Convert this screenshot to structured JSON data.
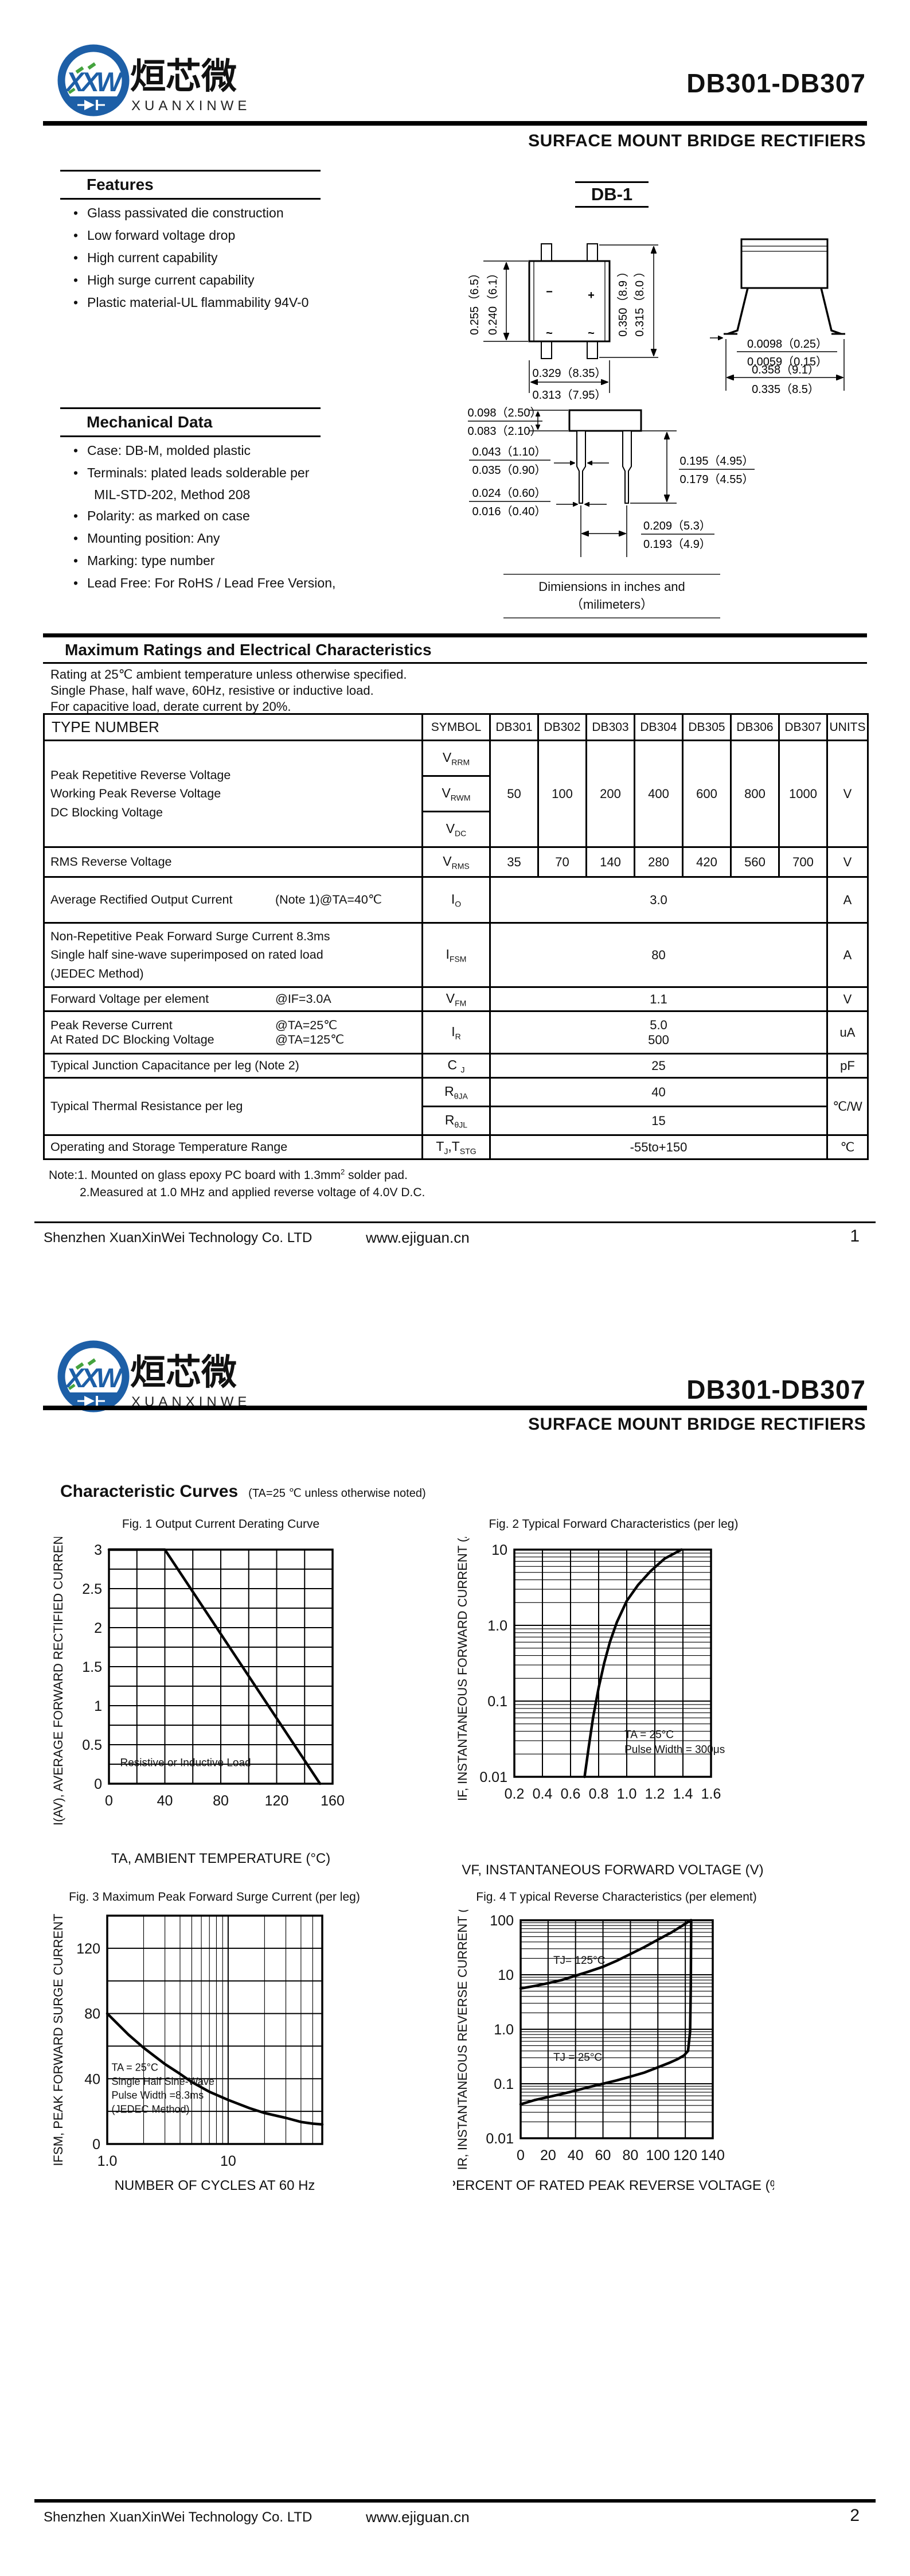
{
  "header": {
    "logo_letters": "XXW",
    "brand_cn": "烜芯微",
    "brand_en": "XUANXINWEI",
    "part_range": "DB301-DB307",
    "subtitle": "SURFACE MOUNT BRIDGE RECTIFIERS"
  },
  "features": {
    "title": "Features",
    "items": [
      "Glass passivated die construction",
      "Low forward voltage drop",
      "High current capability",
      "High surge current capability",
      "Plastic material-UL flammability 94V-0"
    ]
  },
  "mechanical": {
    "title": "Mechanical Data",
    "items": [
      {
        "text": "Case: DB-M, molded plastic"
      },
      {
        "text": "Terminals: plated leads solderable per",
        "cont": "MIL-STD-202, Method 208"
      },
      {
        "text": "Polarity: as marked on case"
      },
      {
        "text": "Mounting position: Any"
      },
      {
        "text": "Marking: type number"
      },
      {
        "text": "Lead Free: For RoHS / Lead Free Version,"
      }
    ]
  },
  "package": {
    "name": "DB-1",
    "caption": "Dimiensions in inches and （milimeters）",
    "top": {
      "h_outer": "0.255（6.5）",
      "h_inner": "0.240（6.1）",
      "v_outer": "0.350（8.9 ）",
      "v_inner": "0.315（8.0 ）",
      "w_top": "0.329（8.35）",
      "w_bot": "0.313（7.95）",
      "mark_minus": "−",
      "mark_plus": "+",
      "mark_ac1": "~",
      "mark_ac2": "~"
    },
    "side": {
      "t_max": "0.0098（0.25）",
      "t_min": "0.0059（0.15）",
      "w_max": "0.358（9.1）",
      "w_min": "0.335（8.5）"
    },
    "front": {
      "body_max": "0.098（2.50）",
      "body_min": "0.083（2.10）",
      "lead_max": "0.043（1.10）",
      "lead_min": "0.035（0.90）",
      "tip_max": "0.024（0.60）",
      "tip_min": "0.016（0.40）",
      "len_max": "0.195（4.95）",
      "len_min": "0.179（4.55）",
      "pitch_max": "0.209（5.3）",
      "pitch_min": "0.193（4.9）"
    }
  },
  "ratings": {
    "title": "Maximum Ratings and Electrical Characteristics",
    "intro": [
      "Rating at 25℃ ambient temperature unless otherwise specified.",
      "Single Phase, half wave, 60Hz, resistive or inductive load.",
      "For capacitive load, derate current by 20%."
    ],
    "headers": [
      "TYPE NUMBER",
      "SYMBOL",
      "DB301",
      "DB302",
      "DB303",
      "DB304",
      "DB305",
      "DB306",
      "DB307",
      "UNITS"
    ],
    "voltage": {
      "lines": [
        "Peak Repetitive Reverse Voltage",
        "Working Peak Reverse Voltage",
        "DC Blocking Voltage"
      ],
      "syms": [
        [
          [
            "V",
            "RRM"
          ]
        ],
        [
          [
            "V",
            "RWM"
          ]
        ],
        [
          [
            "V",
            "DC"
          ]
        ]
      ],
      "values": [
        "50",
        "100",
        "200",
        "400",
        "600",
        "800",
        "1000"
      ],
      "unit": "V"
    },
    "vrms": {
      "label": "RMS Reverse Voltage",
      "sym": [
        [
          "V",
          "RMS"
        ]
      ],
      "values": [
        "35",
        "70",
        "140",
        "280",
        "420",
        "560",
        "700"
      ],
      "unit": "V"
    },
    "io": {
      "l": "Average Rectified Output Current",
      "c": "(Note 1)@TA=40℃",
      "sym": [
        [
          "I",
          "O"
        ]
      ],
      "value": "3.0",
      "unit": "A"
    },
    "ifsm": {
      "lines": [
        "Non-Repetitive Peak Forward Surge Current 8.3ms",
        "Single half sine-wave superimposed on rated load",
        "(JEDEC Method)"
      ],
      "sym": [
        [
          "I",
          "FSM"
        ]
      ],
      "value": "80",
      "unit": "A"
    },
    "vfm": {
      "l": "Forward Voltage per element",
      "c": "@IF=3.0A",
      "sym": [
        [
          "V",
          "FM"
        ]
      ],
      "value": "1.1",
      "unit": "V"
    },
    "ir": {
      "l1": "Peak Reverse Current",
      "c1": "@TA=25℃",
      "l2": "At Rated DC Blocking Voltage",
      "c2": "@TA=125℃",
      "sym": [
        [
          "I",
          "R"
        ]
      ],
      "v1": "5.0",
      "v2": "500",
      "unit": "uA"
    },
    "cj": {
      "label": "Typical Junction Capacitance per leg (Note 2)",
      "sym": [
        [
          "C",
          "J"
        ]
      ],
      "value": "25",
      "unit": "pF"
    },
    "thermal": {
      "label": "Typical Thermal Resistance per leg",
      "sym_a": [
        [
          "R",
          "θJA"
        ]
      ],
      "val_a": "40",
      "sym_l": [
        [
          "R",
          "θJL"
        ]
      ],
      "val_l": "15",
      "unit": "℃/W"
    },
    "trange": {
      "label": "Operating and Storage Temperature Range",
      "sym": [
        [
          "T",
          "J"
        ],
        [
          ",T",
          "STG"
        ]
      ],
      "value": "-55to+150",
      "unit": "℃"
    },
    "note1_pre": "Note:1. Mounted on glass epoxy PC board with 1.3mm",
    "note1_sup": "2",
    "note1_post": " solder pad.",
    "note2": "2.Measured at 1.0 MHz and applied reverse voltage of 4.0V D.C."
  },
  "curves": {
    "title": "Characteristic Curves",
    "note": "(TA=25 ℃ unless otherwise noted)"
  },
  "footer": {
    "company": "Shenzhen XuanXinWei Technology Co. LTD",
    "site": "www.ejiguan.cn",
    "page1": "1",
    "page2": "2"
  },
  "chart_data": [
    {
      "id": "fig1",
      "type": "line",
      "title": "Fig. 1  Output Current Derating Curve",
      "xlabel": "TA, AMBIENT TEMPERATURE (°C)",
      "ylabel": "I(AV), AVERAGE FORWARD RECTIFIED CURRENT (A)",
      "x_scale": "linear",
      "x_min": 0,
      "x_max": 160,
      "x_grid_step": 20,
      "x_ticks": [
        {
          "v": 0,
          "label": "0"
        },
        {
          "v": 40,
          "label": "40"
        },
        {
          "v": 80,
          "label": "80"
        },
        {
          "v": 120,
          "label": "120"
        },
        {
          "v": 160,
          "label": "160"
        }
      ],
      "y_scale": "linear",
      "y_min": 0,
      "y_max": 3,
      "y_grid_step": 0.25,
      "y_ticks": [
        {
          "v": 0,
          "label": "0"
        },
        {
          "v": 0.5,
          "label": "0.5"
        },
        {
          "v": 1,
          "label": "1"
        },
        {
          "v": 1.5,
          "label": "1.5"
        },
        {
          "v": 2,
          "label": "2"
        },
        {
          "v": 2.5,
          "label": "2.5"
        },
        {
          "v": 3,
          "label": "3"
        }
      ],
      "series": [
        {
          "name": "derating-curve",
          "points": [
            [
              0,
              3
            ],
            [
              40,
              3
            ],
            [
              151,
              0
            ]
          ]
        }
      ],
      "annotations": [
        {
          "fx": 0.05,
          "fy": 0.925,
          "size": 19,
          "lines": [
            "Resistive or Inductive Load"
          ]
        }
      ]
    },
    {
      "id": "fig2",
      "type": "line",
      "title": "Fig. 2 Typical Forward Characteristics (per leg)",
      "xlabel": "VF, INSTANTANEOUS FORWARD VOLTAGE (V)",
      "ylabel": "IF, INSTANTANEOUS FORWARD CURRENT (A)",
      "x_scale": "linear",
      "x_min": 0.2,
      "x_max": 1.6,
      "x_grid_step": 0.2,
      "x_ticks": [
        {
          "v": 0.2,
          "label": "0.2"
        },
        {
          "v": 0.4,
          "label": "0.4"
        },
        {
          "v": 0.6,
          "label": "0.6"
        },
        {
          "v": 0.8,
          "label": "0.8"
        },
        {
          "v": 1.0,
          "label": "1.0"
        },
        {
          "v": 1.2,
          "label": "1.2"
        },
        {
          "v": 1.4,
          "label": "1.4"
        },
        {
          "v": 1.6,
          "label": "1.6"
        }
      ],
      "y_scale": "log",
      "y_min": 0.01,
      "y_max": 10,
      "y_ticks": [
        {
          "v": 0.01,
          "label": "0.01"
        },
        {
          "v": 0.1,
          "label": "0.1"
        },
        {
          "v": 1,
          "label": "1.0"
        },
        {
          "v": 10,
          "label": "10"
        }
      ],
      "series": [
        {
          "name": "forward-voltage-curve",
          "points": [
            [
              0.7,
              0.01
            ],
            [
              0.73,
              0.025
            ],
            [
              0.76,
              0.06
            ],
            [
              0.8,
              0.15
            ],
            [
              0.84,
              0.32
            ],
            [
              0.88,
              0.6
            ],
            [
              0.93,
              1.1
            ],
            [
              1.0,
              2.1
            ],
            [
              1.08,
              3.4
            ],
            [
              1.17,
              5.2
            ],
            [
              1.27,
              7.6
            ],
            [
              1.39,
              10
            ]
          ]
        }
      ],
      "annotations": [
        {
          "fx": 0.56,
          "fy": 0.83,
          "size": 19,
          "lines": [
            "TA = 25°C",
            "Pulse Width = 300μs"
          ]
        }
      ]
    },
    {
      "id": "fig3",
      "type": "line",
      "title": "Fig. 3  Maximum Peak Forward Surge Current (per leg)",
      "xlabel": "NUMBER OF CYCLES AT 60 Hz",
      "ylabel": "IFSM, PEAK FORWARD SURGE CURRENT (A)",
      "x_scale": "log",
      "x_min": 1,
      "x_max": 60,
      "x_ticks": [
        {
          "v": 1,
          "label": "1.0"
        },
        {
          "v": 10,
          "label": "10"
        }
      ],
      "y_scale": "linear",
      "y_min": 0,
      "y_max": 140,
      "y_grid_step": 20,
      "y_ticks": [
        {
          "v": 0,
          "label": "0"
        },
        {
          "v": 40,
          "label": "40"
        },
        {
          "v": 80,
          "label": "80"
        },
        {
          "v": 120,
          "label": "120"
        }
      ],
      "series": [
        {
          "name": "surge-current-curve",
          "points": [
            [
              1,
              80
            ],
            [
              1.5,
              67
            ],
            [
              2,
              59
            ],
            [
              3,
              49
            ],
            [
              4,
              43
            ],
            [
              5,
              38
            ],
            [
              7,
              32
            ],
            [
              10,
              27
            ],
            [
              15,
              22
            ],
            [
              20,
              19
            ],
            [
              30,
              16
            ],
            [
              40,
              13.5
            ],
            [
              50,
              12.5
            ],
            [
              60,
              12
            ]
          ]
        }
      ],
      "annotations": [
        {
          "fx": 0.02,
          "fy": 0.68,
          "size": 18,
          "lines": [
            "TA = 25°C",
            "Single Half Sine-Wave",
            "Pulse Width =8.3ms",
            "(JEDEC Method)"
          ]
        }
      ]
    },
    {
      "id": "fig4",
      "type": "line",
      "title": "Fig. 4 T ypical Reverse Characteristics (per element)",
      "xlabel": "PERCENT OF RATED PEAK REVERSE VOLTAGE (%)",
      "ylabel": "IR, INSTANTANEOUS REVERSE CURRENT (μA)",
      "x_scale": "linear",
      "x_min": 0,
      "x_max": 140,
      "x_grid_step": 20,
      "x_ticks": [
        {
          "v": 0,
          "label": "0"
        },
        {
          "v": 20,
          "label": "20"
        },
        {
          "v": 40,
          "label": "40"
        },
        {
          "v": 60,
          "label": "60"
        },
        {
          "v": 80,
          "label": "80"
        },
        {
          "v": 100,
          "label": "100"
        },
        {
          "v": 120,
          "label": "120"
        },
        {
          "v": 140,
          "label": "140"
        }
      ],
      "y_scale": "log",
      "y_min": 0.01,
      "y_max": 100,
      "y_ticks": [
        {
          "v": 0.01,
          "label": "0.01"
        },
        {
          "v": 0.1,
          "label": "0.1"
        },
        {
          "v": 1,
          "label": "1.0"
        },
        {
          "v": 10,
          "label": "10"
        },
        {
          "v": 100,
          "label": "100"
        }
      ],
      "series": [
        {
          "name": "tj-125-curve",
          "points": [
            [
              0,
              5.6
            ],
            [
              10,
              6.2
            ],
            [
              20,
              7
            ],
            [
              30,
              8
            ],
            [
              40,
              9.6
            ],
            [
              50,
              11.5
            ],
            [
              60,
              14
            ],
            [
              70,
              18
            ],
            [
              80,
              24
            ],
            [
              90,
              32
            ],
            [
              100,
              44
            ],
            [
              110,
              60
            ],
            [
              118,
              80
            ],
            [
              124,
              100
            ]
          ]
        },
        {
          "name": "tj-25-curve",
          "points": [
            [
              0,
              0.042
            ],
            [
              10,
              0.05
            ],
            [
              20,
              0.057
            ],
            [
              30,
              0.065
            ],
            [
              40,
              0.075
            ],
            [
              50,
              0.087
            ],
            [
              60,
              0.1
            ],
            [
              70,
              0.115
            ],
            [
              80,
              0.135
            ],
            [
              90,
              0.16
            ],
            [
              100,
              0.2
            ],
            [
              108,
              0.24
            ],
            [
              114,
              0.28
            ],
            [
              119,
              0.33
            ],
            [
              122,
              0.4
            ],
            [
              123.5,
              0.9
            ],
            [
              124,
              6
            ],
            [
              124.3,
              100
            ]
          ]
        }
      ],
      "annotations": [
        {
          "fx": 0.17,
          "fy": 0.2,
          "size": 19,
          "lines": [
            "TJ= 125°C"
          ]
        },
        {
          "fx": 0.17,
          "fy": 0.645,
          "size": 19,
          "lines": [
            "TJ = 25°C"
          ]
        }
      ]
    }
  ]
}
